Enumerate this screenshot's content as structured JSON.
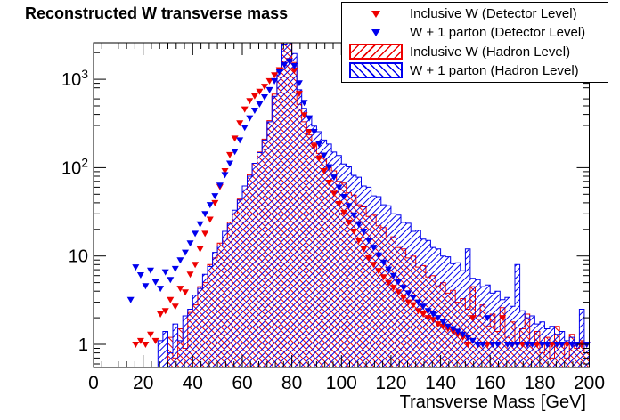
{
  "figure": {
    "title": "Reconstructed W transverse mass",
    "background": "#ffffff",
    "frame_color": "#000000"
  },
  "legend": {
    "items": [
      {
        "label": "Inclusive W (Detector Level)",
        "swatch": "triangle-down",
        "color": "#ee0000"
      },
      {
        "label": "W + 1 parton (Detector Level)",
        "swatch": "triangle-down",
        "color": "#0000ee"
      },
      {
        "label": "Inclusive W (Hadron Level)",
        "swatch": "hatch-forward",
        "color": "#ee0000"
      },
      {
        "label": "W + 1 parton (Hadron Level)",
        "swatch": "hatch-backward",
        "color": "#0000ee"
      }
    ]
  },
  "chart_data": {
    "type": "bar",
    "subtype": "log-histogram-with-markers",
    "title": "Reconstructed W transverse mass",
    "xlabel": "Transverse Mass [GeV]",
    "ylabel": "",
    "x_range": [
      0,
      200
    ],
    "y_range": [
      0.55,
      2600
    ],
    "y_scale": "log",
    "bin_width": 2,
    "bin_start": 0,
    "x_tick_labels": [
      0,
      20,
      40,
      60,
      80,
      100,
      120,
      140,
      160,
      180,
      200
    ],
    "x_minor_per_major": 6,
    "y_tick_labels": [
      {
        "value": 1,
        "base": "1",
        "exp": ""
      },
      {
        "value": 10,
        "base": "10",
        "exp": ""
      },
      {
        "value": 100,
        "base": "10",
        "exp": "2"
      },
      {
        "value": 1000,
        "base": "10",
        "exp": "3"
      }
    ],
    "legend_position": "top-right",
    "grid": false,
    "series": [
      {
        "name": "Inclusive W (Hadron Level)",
        "style": "hatched-histogram",
        "hatch": "/",
        "color": "#ee0000",
        "values": [
          0,
          0,
          0,
          0,
          0,
          0,
          0,
          0,
          0,
          0,
          0,
          0,
          0,
          0,
          0,
          1.2,
          0.7,
          1.5,
          0.9,
          2.3,
          2.8,
          4.5,
          5,
          8,
          9.5,
          14,
          16,
          24,
          30,
          44,
          56,
          83,
          112,
          150,
          210,
          340,
          680,
          1350,
          2600,
          3200,
          1550,
          520,
          330,
          235,
          190,
          145,
          128,
          100,
          92,
          70,
          67,
          52,
          49,
          38,
          36,
          28,
          29,
          22,
          21,
          16,
          16.5,
          12.5,
          12,
          9.5,
          10,
          7.5,
          7.8,
          5.8,
          6,
          4.6,
          5,
          3.8,
          4.1,
          3,
          3.3,
          2.5,
          4.5,
          2.1,
          2.8,
          1.6,
          2.2,
          1.4,
          2.6,
          1.2,
          1.8,
          1,
          1.5,
          2.2,
          1,
          1.4,
          0.8,
          1.2,
          0.7,
          1.6,
          1,
          0.7,
          1.3,
          0.9,
          1.1,
          0.8
        ]
      },
      {
        "name": "W + 1 parton (Hadron Level)",
        "style": "hatched-histogram",
        "hatch": "\\",
        "color": "#0000ee",
        "values": [
          0,
          0,
          0,
          0,
          0,
          0,
          0,
          0,
          0,
          0,
          0,
          0,
          0,
          1.1,
          1.4,
          0.8,
          1.7,
          1.1,
          2.1,
          2.5,
          3.6,
          4.3,
          6.2,
          7.6,
          11,
          13,
          19,
          23,
          33,
          43,
          62,
          80,
          112,
          148,
          205,
          330,
          640,
          1250,
          2450,
          3100,
          1950,
          760,
          470,
          380,
          295,
          255,
          205,
          185,
          150,
          137,
          110,
          102,
          82,
          78,
          62,
          60,
          48,
          47,
          38,
          37,
          30,
          29,
          24,
          23.5,
          19,
          19.5,
          15.5,
          15,
          12.5,
          12,
          10,
          9.8,
          8.2,
          8.4,
          6.8,
          12,
          5.6,
          5.4,
          4.5,
          4.7,
          3.8,
          4,
          3.2,
          3.4,
          2.7,
          8,
          2.4,
          2,
          2.1,
          1.7,
          1.8,
          1.5,
          1.6,
          1.3,
          1.4,
          1.1,
          1.2,
          1,
          2.5,
          0.9
        ]
      },
      {
        "name": "Inclusive W (Detector Level)",
        "style": "triangle-down-markers",
        "color": "#ee0000",
        "values": [
          0,
          0,
          0,
          0,
          0,
          0,
          0,
          0,
          1,
          1.1,
          1,
          1.3,
          1.1,
          2.2,
          2.4,
          3.2,
          2.7,
          4.3,
          3.9,
          6.2,
          8,
          12,
          18,
          26,
          40,
          61,
          92,
          140,
          215,
          320,
          460,
          570,
          650,
          730,
          830,
          960,
          1120,
          1280,
          1470,
          1620,
          1260,
          690,
          395,
          255,
          175,
          128,
          92,
          68,
          51,
          39,
          31,
          24,
          19,
          15,
          12,
          9.5,
          8,
          6.8,
          5.8,
          5,
          4.4,
          3.9,
          3.4,
          3,
          2.8,
          2.4,
          2.2,
          2,
          1.9,
          1.7,
          1.6,
          1.5,
          1.4,
          1.3,
          1.2,
          1,
          2,
          1,
          0,
          1,
          1,
          0,
          2,
          1,
          1,
          0,
          1,
          1,
          0,
          1,
          1,
          0,
          1,
          0,
          1,
          1,
          0,
          1,
          1,
          1
        ]
      },
      {
        "name": "W + 1 parton (Detector Level)",
        "style": "triangle-down-markers",
        "color": "#0000ee",
        "values": [
          0,
          0,
          0,
          0,
          0,
          0,
          0,
          3.2,
          7.5,
          6.1,
          4.6,
          6.9,
          5.1,
          4.3,
          6.6,
          5.4,
          7.2,
          9,
          11,
          14,
          18,
          23,
          30,
          38,
          48,
          63,
          83,
          112,
          152,
          205,
          285,
          365,
          445,
          525,
          630,
          760,
          960,
          1210,
          1460,
          1610,
          1420,
          910,
          545,
          365,
          255,
          185,
          138,
          102,
          78,
          60,
          47,
          37,
          29,
          23,
          19,
          15,
          12.5,
          10.2,
          8.5,
          7.1,
          6,
          5.1,
          4.4,
          3.8,
          3.4,
          3,
          2.7,
          2.4,
          2.2,
          2,
          1.8,
          1.6,
          1.5,
          1.4,
          1.3,
          1.2,
          1.1,
          1,
          1,
          2,
          1,
          1,
          0,
          1,
          1,
          1,
          0,
          1,
          1,
          0,
          1,
          1,
          0,
          1,
          1,
          0,
          1,
          1,
          0,
          1
        ]
      }
    ]
  }
}
